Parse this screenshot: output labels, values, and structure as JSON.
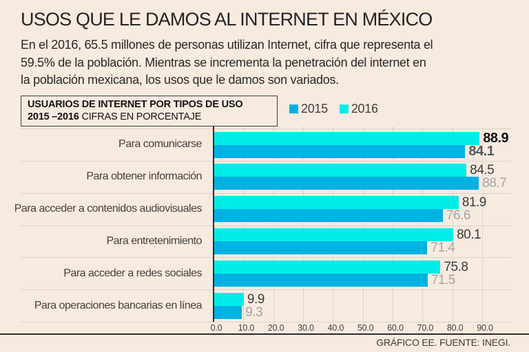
{
  "page": {
    "background": "#f7ebe0",
    "title": "USOS QUE LE DAMOS AL INTERNET EN MÉXICO",
    "intro_lines": [
      "En el 2016, 65.5 millones de personas utilizan Internet, cifra que representa el",
      "59.5% de la población. Mientras se incrementa la penetración del internet en",
      "la población mexicana, los usos que le damos son variados."
    ],
    "footer": "GRÁFICO EE. FUENTE: INEGI."
  },
  "chart_header": {
    "title_line1": "USUARIOS DE INTERNET POR TIPOS DE USO",
    "title_line2_bold": "2015 –2016",
    "title_line2_rest": " CIFRAS EN PORCENTAJE"
  },
  "legend": {
    "items": [
      {
        "label": "2015",
        "color": "#00b2e2"
      },
      {
        "label": "2016",
        "color": "#00ece6"
      }
    ]
  },
  "chart_data": {
    "type": "bar",
    "orientation": "horizontal",
    "title": "USUARIOS DE INTERNET POR TIPOS DE USO 2015–2016, CIFRAS EN PORCENTAJE",
    "categories": [
      "Para comunicarse",
      "Para obtener información",
      "Para acceder a contenidos audiovisuales",
      "Para entretenimiento",
      "Para acceder a redes sociales",
      "Para operaciones bancarias en línea"
    ],
    "series": [
      {
        "name": "2016",
        "color": "#00ece6",
        "values": [
          88.9,
          84.5,
          81.9,
          80.1,
          75.8,
          9.9
        ]
      },
      {
        "name": "2015",
        "color": "#00b2e2",
        "values": [
          84.1,
          88.7,
          76.6,
          71.4,
          71.5,
          9.3
        ]
      }
    ],
    "xlim": [
      0,
      90
    ],
    "x_tick_labels": [
      "0.0",
      "10.0",
      "20.0",
      "30.0",
      "40.0",
      "50.0",
      "60.0",
      "70.0",
      "80.0",
      "90.0"
    ],
    "grid": "vertical-dotted",
    "legend_position": "top-right",
    "value_labels": "end-of-bar"
  }
}
